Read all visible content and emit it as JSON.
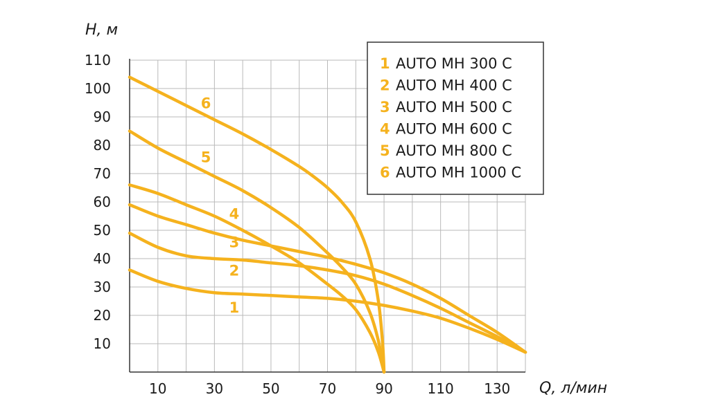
{
  "chart_data": {
    "type": "line",
    "xlabel": "Q, л/мин",
    "ylabel": "H, м",
    "xlim": [
      0,
      140
    ],
    "ylim": [
      0,
      110
    ],
    "x_ticks": [
      10,
      30,
      50,
      70,
      90,
      110,
      130
    ],
    "y_ticks": [
      10,
      20,
      30,
      40,
      50,
      60,
      70,
      80,
      90,
      100,
      110
    ],
    "grid": true,
    "legend_position": "top-right",
    "curve_color": "#F5B21E",
    "series": [
      {
        "label": "1",
        "name": "AUTO MH 300 C",
        "x": [
          0,
          10,
          20,
          30,
          40,
          50,
          60,
          70,
          80,
          90,
          100,
          110,
          120,
          130,
          140
        ],
        "y": [
          36,
          32,
          29.5,
          28,
          27.5,
          27,
          26.5,
          26,
          25,
          23.5,
          21.5,
          19,
          15.5,
          11.5,
          7
        ]
      },
      {
        "label": "2",
        "name": "AUTO MH 400 C",
        "x": [
          0,
          10,
          20,
          30,
          40,
          50,
          60,
          70,
          80,
          90,
          100,
          110,
          120,
          130,
          140
        ],
        "y": [
          49,
          44,
          41,
          40,
          39.5,
          38.5,
          37.5,
          36,
          34,
          31,
          27,
          22.5,
          17.5,
          12.5,
          7
        ]
      },
      {
        "label": "3",
        "name": "AUTO MH 500 C",
        "x": [
          0,
          10,
          20,
          30,
          40,
          50,
          60,
          70,
          80,
          90,
          100,
          110,
          120,
          130,
          140
        ],
        "y": [
          59,
          55,
          52,
          49,
          46.5,
          44.5,
          42.5,
          40.5,
          38,
          35,
          31,
          26,
          20,
          14,
          7
        ]
      },
      {
        "label": "4",
        "name": "AUTO MH 600 C",
        "x": [
          0,
          10,
          20,
          30,
          40,
          50,
          60,
          70,
          75,
          80,
          85,
          88,
          90
        ],
        "y": [
          66,
          63,
          59,
          55,
          50,
          44.5,
          38.5,
          31,
          27,
          22,
          14,
          7,
          0
        ]
      },
      {
        "label": "5",
        "name": "AUTO MH 800 C",
        "x": [
          0,
          10,
          20,
          30,
          40,
          50,
          60,
          70,
          75,
          80,
          85,
          88,
          90
        ],
        "y": [
          85,
          79,
          74,
          69,
          64,
          58,
          51,
          42,
          37,
          31,
          21,
          11,
          0
        ]
      },
      {
        "label": "6",
        "name": "AUTO MH 1000 C",
        "x": [
          0,
          10,
          20,
          30,
          40,
          50,
          60,
          65,
          70,
          75,
          80,
          85,
          88,
          89.5,
          90
        ],
        "y": [
          104,
          99,
          94,
          89,
          84,
          78.5,
          72.5,
          69,
          65,
          60,
          53,
          40,
          25,
          10,
          0
        ]
      }
    ]
  }
}
